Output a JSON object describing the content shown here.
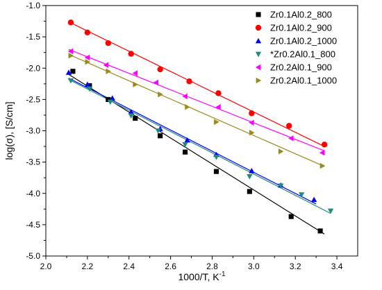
{
  "chart_data": {
    "type": "scatter",
    "xlabel": "1000/T, K",
    "xlabel_sup": "-1",
    "ylabel": "log(σ), [S/cm]",
    "xlim": [
      2.0,
      3.5
    ],
    "ylim": [
      -5.0,
      -1.0
    ],
    "xticks": [
      "2.0",
      "2.2",
      "2.4",
      "2.6",
      "2.8",
      "3.0",
      "3.2",
      "3.4"
    ],
    "yticks": [
      "-1.0",
      "-1.5",
      "-2.0",
      "-2.5",
      "-3.0",
      "-3.5",
      "-4.0",
      "-4.5",
      "-5.0"
    ],
    "legend_position": "top-right",
    "series": [
      {
        "name": "Zr0.1Al0.2_800",
        "color": "#000000",
        "marker": "square",
        "points": [
          [
            2.13,
            -2.05
          ],
          [
            2.21,
            -2.28
          ],
          [
            2.3,
            -2.5
          ],
          [
            2.43,
            -2.8
          ],
          [
            2.55,
            -3.08
          ],
          [
            2.67,
            -3.34
          ],
          [
            2.82,
            -3.65
          ],
          [
            2.98,
            -3.97
          ],
          [
            3.18,
            -4.37
          ],
          [
            3.32,
            -4.6
          ]
        ],
        "fit": [
          [
            2.11,
            -2.1
          ],
          [
            3.34,
            -4.65
          ]
        ]
      },
      {
        "name": "Zr0.1Al0.2_900",
        "color": "#ff0000",
        "marker": "circle",
        "points": [
          [
            2.12,
            -1.27
          ],
          [
            2.2,
            -1.43
          ],
          [
            2.3,
            -1.6
          ],
          [
            2.41,
            -1.77
          ],
          [
            2.55,
            -2.02
          ],
          [
            2.69,
            -2.21
          ],
          [
            2.83,
            -2.4
          ],
          [
            2.99,
            -2.72
          ],
          [
            3.17,
            -2.92
          ],
          [
            3.34,
            -3.22
          ]
        ],
        "fit": [
          [
            2.11,
            -1.26
          ],
          [
            3.34,
            -3.25
          ]
        ]
      },
      {
        "name": "Zr0.1Al0.2_1000",
        "color": "#0000ff",
        "marker": "triangle-up",
        "points": [
          [
            2.11,
            -2.07
          ],
          [
            2.2,
            -2.26
          ],
          [
            2.32,
            -2.48
          ],
          [
            2.41,
            -2.7
          ],
          [
            2.55,
            -2.97
          ],
          [
            2.68,
            -3.15
          ],
          [
            2.82,
            -3.38
          ],
          [
            2.99,
            -3.64
          ],
          [
            3.13,
            -3.87
          ],
          [
            3.29,
            -4.1
          ]
        ],
        "fit": [
          [
            2.11,
            -2.16
          ],
          [
            3.3,
            -4.17
          ]
        ]
      },
      {
        "name": "*Zr0.2Al0.1_800",
        "color": "#1e8c7a",
        "marker": "triangle-down",
        "points": [
          [
            2.12,
            -2.2
          ],
          [
            2.21,
            -2.33
          ],
          [
            2.31,
            -2.54
          ],
          [
            2.41,
            -2.76
          ],
          [
            2.54,
            -3.0
          ],
          [
            2.67,
            -3.22
          ],
          [
            2.82,
            -3.42
          ],
          [
            2.98,
            -3.73
          ],
          [
            3.13,
            -3.88
          ],
          [
            3.23,
            -4.02
          ],
          [
            3.37,
            -4.28
          ]
        ],
        "fit": [
          [
            2.11,
            -2.18
          ],
          [
            3.37,
            -4.32
          ]
        ]
      },
      {
        "name": "Zr0.2Al0.1_900",
        "color": "#ff00ff",
        "marker": "triangle-left",
        "points": [
          [
            2.12,
            -1.73
          ],
          [
            2.2,
            -1.83
          ],
          [
            2.29,
            -1.95
          ],
          [
            2.43,
            -2.08
          ],
          [
            2.53,
            -2.23
          ],
          [
            2.67,
            -2.45
          ],
          [
            2.83,
            -2.62
          ],
          [
            2.99,
            -2.87
          ],
          [
            3.18,
            -3.12
          ],
          [
            3.33,
            -3.35
          ]
        ],
        "fit": [
          [
            2.11,
            -1.7
          ],
          [
            3.34,
            -3.32
          ]
        ]
      },
      {
        "name": "Zr0.2Al0.1_1000",
        "color": "#9b8a1a",
        "marker": "triangle-right",
        "points": [
          [
            2.12,
            -1.8
          ],
          [
            2.2,
            -1.9
          ],
          [
            2.3,
            -2.05
          ],
          [
            2.43,
            -2.26
          ],
          [
            2.55,
            -2.42
          ],
          [
            2.68,
            -2.62
          ],
          [
            2.82,
            -2.86
          ],
          [
            2.99,
            -3.03
          ],
          [
            3.13,
            -3.33
          ],
          [
            3.33,
            -3.56
          ]
        ],
        "fit": [
          [
            2.11,
            -1.78
          ],
          [
            3.34,
            -3.57
          ]
        ]
      }
    ]
  }
}
